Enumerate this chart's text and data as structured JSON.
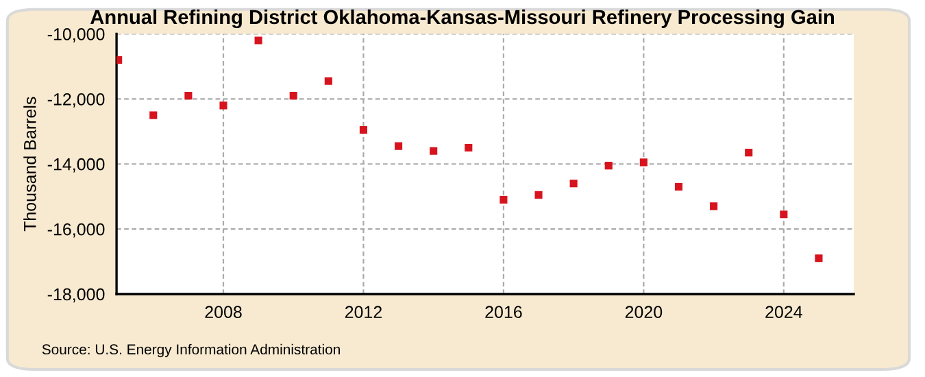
{
  "chart_data": {
    "type": "scatter",
    "title": "Annual Refining District Oklahoma-Kansas-Missouri Refinery Processing Gain",
    "ylabel": "Thousand Barrels",
    "x": [
      2005,
      2006,
      2007,
      2008,
      2009,
      2010,
      2011,
      2012,
      2013,
      2014,
      2015,
      2016,
      2017,
      2018,
      2019,
      2020,
      2021,
      2022,
      2023,
      2024,
      2025
    ],
    "series": [
      {
        "color": "#d7141e",
        "values": [
          -10800,
          -12500,
          -11900,
          -12200,
          -10200,
          -11900,
          -11450,
          -12950,
          -13450,
          -13600,
          -13500,
          -15100,
          -14950,
          -14600,
          -14050,
          -13950,
          -14700,
          -15300,
          -13650,
          -15550,
          -16900
        ]
      }
    ],
    "xlim": [
      2004.95,
      2026
    ],
    "xticks": [
      2008,
      2012,
      2016,
      2020,
      2024
    ],
    "ylim": [
      -18000,
      -10000
    ],
    "yticks": [
      {
        "value": -18000,
        "label": "-18,000"
      },
      {
        "value": -16000,
        "label": "-16,000"
      },
      {
        "value": -14000,
        "label": "-14,000"
      },
      {
        "value": -12000,
        "label": "-12,000"
      },
      {
        "value": -10000,
        "label": "-10,000"
      }
    ],
    "grid": true,
    "marker": "square",
    "annotations": [
      "Source: U.S. Energy Information Administration"
    ]
  }
}
